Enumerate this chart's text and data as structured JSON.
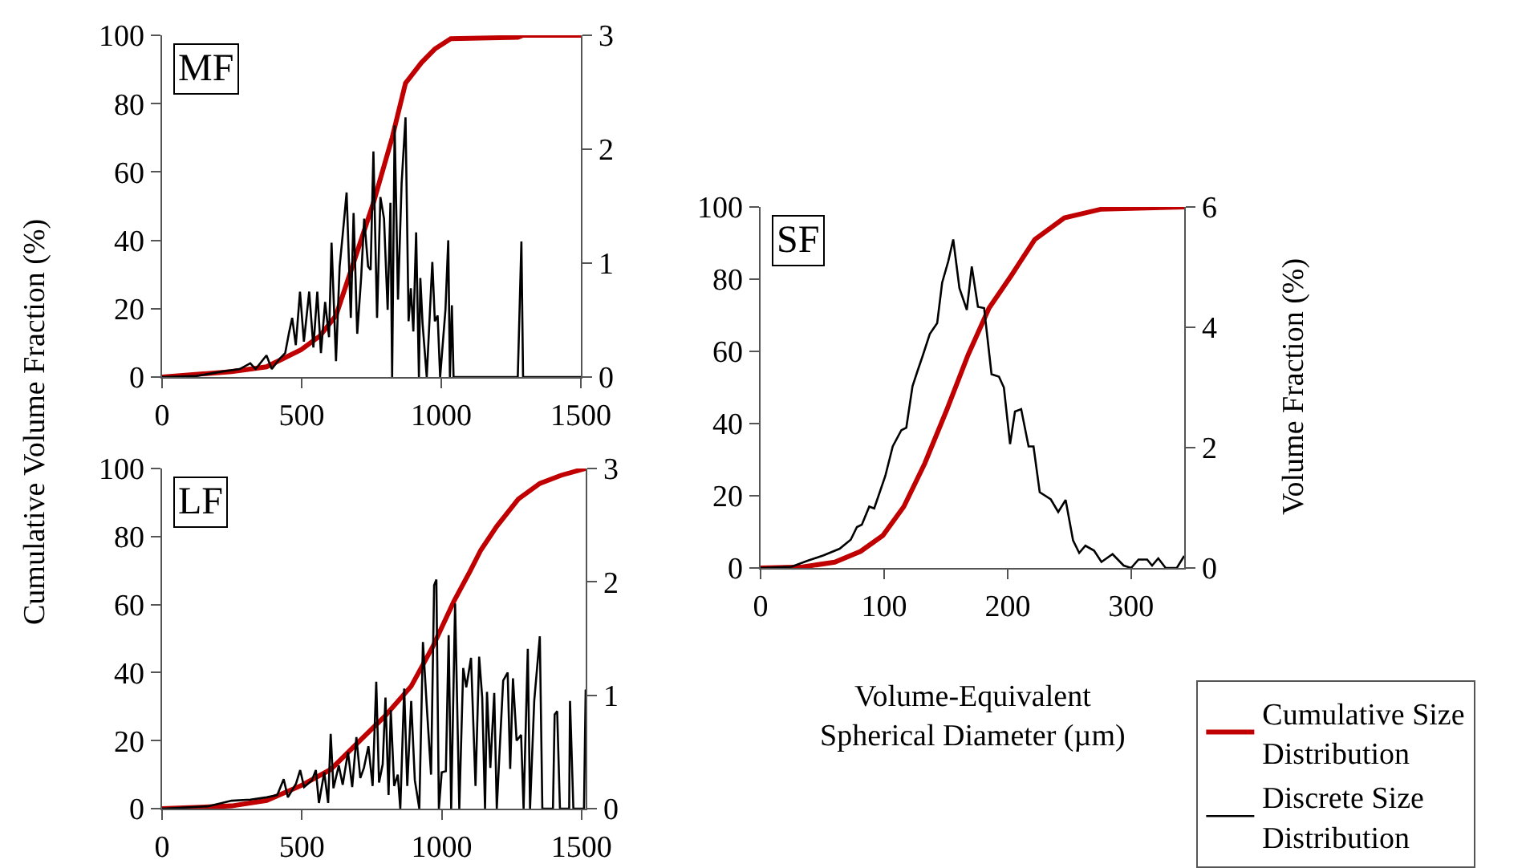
{
  "chart_data": [
    {
      "type": "line",
      "annotations": [
        "MF"
      ],
      "ylabel": "Cumulative Volume Fraction (%)",
      "xlim": [
        0,
        1500
      ],
      "xticks": [
        0,
        500,
        1000,
        1500
      ],
      "ylim": [
        0,
        100
      ],
      "yticks": [
        0,
        20,
        40,
        60,
        80,
        100
      ],
      "y2lim": [
        0,
        3
      ],
      "y2ticks": [
        0,
        1,
        2,
        3
      ],
      "legend": false,
      "series": [
        {
          "color": "#c00000",
          "x": [
            0,
            249,
            374,
            498,
            565,
            623,
            680,
            757,
            824,
            872,
            929,
            977,
            1034,
            1274,
            1293,
            1500
          ],
          "values": [
            0,
            1.6,
            3,
            8,
            12,
            18,
            32,
            51,
            70,
            86,
            92,
            96,
            99,
            99.4,
            100,
            100
          ]
        },
        {
          "color": "#000000",
          "axis": "y2",
          "x": [
            0,
            124,
            220,
            278,
            316,
            335,
            374,
            393,
            421,
            441,
            454,
            466,
            479,
            494,
            508,
            527,
            542,
            556,
            569,
            584,
            598,
            607,
            623,
            636,
            647,
            661,
            676,
            686,
            699,
            713,
            724,
            738,
            747,
            757,
            770,
            782,
            795,
            808,
            818,
            824,
            833,
            845,
            858,
            872,
            883,
            891,
            900,
            910,
            920,
            925,
            933,
            948,
            968,
            977,
            987,
            996,
            1015,
            1025,
            1031,
            1038,
            1044,
            1274,
            1287,
            1293,
            1500
          ],
          "values": [
            0,
            0.01,
            0.05,
            0.07,
            0.12,
            0.07,
            0.19,
            0.07,
            0.16,
            0.21,
            0.38,
            0.52,
            0.28,
            0.75,
            0.31,
            0.75,
            0.26,
            0.75,
            0.21,
            0.66,
            0.35,
            1.18,
            0.14,
            0.97,
            1.25,
            1.62,
            0.52,
            1.44,
            0.38,
            0.87,
            1.39,
            0.97,
            0.94,
            1.98,
            0.52,
            1.58,
            1.39,
            0.59,
            1.53,
            0,
            2.21,
            0.68,
            1.7,
            2.28,
            0.49,
            0.78,
            0.4,
            1.27,
            0,
            0.87,
            0.47,
            0,
            1.01,
            0.49,
            0.54,
            0,
            0.59,
            1.2,
            0,
            0.63,
            0,
            0,
            1.19,
            0,
            0
          ]
        }
      ]
    },
    {
      "type": "line",
      "annotations": [
        "LF"
      ],
      "xlim": [
        0,
        1515
      ],
      "xticks": [
        0,
        500,
        1000,
        1500
      ],
      "ylim": [
        0,
        100
      ],
      "yticks": [
        0,
        20,
        40,
        60,
        80,
        100
      ],
      "y2lim": [
        0,
        3
      ],
      "y2ticks": [
        0,
        1,
        2,
        3
      ],
      "legend": false,
      "series": [
        {
          "color": "#c00000",
          "x": [
            0,
            249,
            374,
            498,
            603,
            699,
            795,
            891,
            968,
            1044,
            1101,
            1140,
            1197,
            1274,
            1351,
            1427,
            1515
          ],
          "values": [
            0,
            0.8,
            2.4,
            6.8,
            11.5,
            19.3,
            27,
            36,
            47.6,
            61,
            69.7,
            76,
            83,
            91,
            95.6,
            98,
            100
          ]
        },
        {
          "color": "#000000",
          "axis": "y2",
          "x": [
            0,
            163,
            249,
            316,
            374,
            412,
            435,
            450,
            479,
            494,
            508,
            536,
            550,
            561,
            580,
            594,
            603,
            613,
            632,
            646,
            665,
            680,
            695,
            709,
            722,
            738,
            753,
            766,
            776,
            789,
            799,
            810,
            818,
            830,
            843,
            852,
            866,
            877,
            891,
            904,
            920,
            933,
            948,
            962,
            973,
            981,
            990,
            1000,
            1015,
            1025,
            1034,
            1048,
            1063,
            1077,
            1088,
            1105,
            1121,
            1134,
            1145,
            1155,
            1162,
            1174,
            1188,
            1197,
            1207,
            1220,
            1236,
            1245,
            1255,
            1268,
            1284,
            1293,
            1308,
            1316,
            1331,
            1351,
            1360,
            1398,
            1404,
            1413,
            1423,
            1456,
            1459,
            1471,
            1509,
            1515
          ],
          "values": [
            0,
            0.02,
            0.07,
            0.08,
            0.1,
            0.12,
            0.26,
            0.1,
            0.22,
            0.34,
            0.19,
            0.25,
            0.34,
            0.05,
            0.32,
            0.05,
            0.66,
            0.18,
            0.38,
            0.21,
            0.5,
            0.19,
            0.63,
            0.27,
            0.36,
            0.55,
            0.2,
            1.12,
            0.23,
            0.39,
            0.98,
            0.12,
            0.87,
            0.2,
            0.3,
            0,
            1.06,
            0.2,
            0.95,
            0.25,
            0,
            1.47,
            0.85,
            0.3,
            1.97,
            2.02,
            0,
            0.32,
            0.33,
            1.53,
            0,
            1.81,
            0,
            1.24,
            1.07,
            1.33,
            0.2,
            1.34,
            0.98,
            0,
            1.03,
            0.36,
            1.02,
            0,
            0.5,
            1.13,
            1.2,
            0.35,
            1.15,
            0.6,
            0.65,
            0,
            1.41,
            0,
            0.95,
            1.52,
            0,
            0,
            0.83,
            0.86,
            0,
            0,
            0.95,
            0,
            0,
            1.05
          ]
        }
      ]
    },
    {
      "type": "line",
      "annotations": [
        "SF"
      ],
      "xlabel": "Volume-Equivalent Spherical Diameter (µm)",
      "y2label": "Volume Fraction (%)",
      "xlim": [
        0,
        343
      ],
      "xticks": [
        0,
        100,
        200,
        300
      ],
      "ylim": [
        0,
        100
      ],
      "yticks": [
        0,
        20,
        40,
        60,
        80,
        100
      ],
      "y2lim": [
        0,
        6
      ],
      "y2ticks": [
        0,
        2,
        4,
        6
      ],
      "legend": "bottom right",
      "series": [
        {
          "name": "Cumulative Size Distribution",
          "color": "#c00000",
          "x": [
            0,
            34,
            60,
            81,
            99,
            116,
            133,
            151,
            168,
            185,
            203,
            222,
            246,
            276,
            343
          ],
          "values": [
            0,
            0.3,
            1.6,
            4.6,
            9,
            17,
            29,
            44,
            59,
            72,
            81,
            91,
            97,
            99.4,
            100
          ]
        },
        {
          "name": "Discrete Size Distribution",
          "color": "#000000",
          "axis": "y2",
          "x": [
            0,
            25,
            38,
            51,
            64,
            73,
            78,
            82,
            88,
            92,
            101,
            107,
            114,
            118,
            123,
            127,
            131,
            137,
            143,
            147,
            152,
            156,
            161,
            167,
            171,
            176,
            181,
            187,
            193,
            197,
            202,
            206,
            211,
            217,
            221,
            226,
            235,
            241,
            247,
            253,
            258,
            263,
            270,
            276,
            285,
            294,
            300,
            306,
            313,
            317,
            322,
            328,
            337,
            343
          ],
          "values": [
            0,
            0.02,
            0.12,
            0.21,
            0.32,
            0.47,
            0.68,
            0.72,
            1.02,
            0.99,
            1.53,
            2.02,
            2.29,
            2.33,
            3.02,
            3.27,
            3.51,
            3.89,
            4.07,
            4.74,
            5.1,
            5.46,
            4.65,
            4.29,
            5.01,
            4.34,
            4.32,
            3.22,
            3.18,
            3.0,
            2.06,
            2.6,
            2.64,
            2.02,
            2.02,
            1.26,
            1.14,
            0.93,
            1.13,
            0.46,
            0.25,
            0.37,
            0.29,
            0.1,
            0.23,
            0.04,
            0,
            0.14,
            0.14,
            0.04,
            0.16,
            0,
            0,
            0.2
          ]
        }
      ]
    }
  ]
}
